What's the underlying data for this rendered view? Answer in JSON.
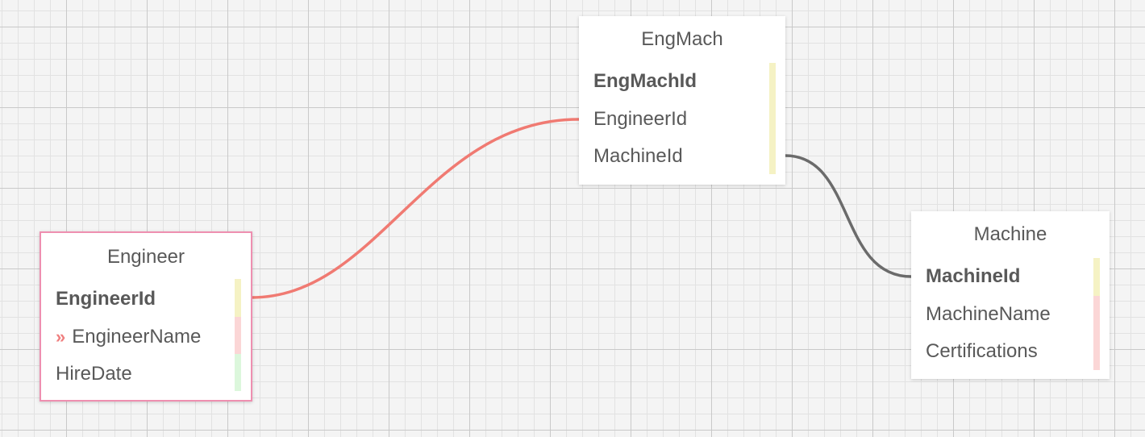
{
  "colors": {
    "marker_pk": "#f5f2c4",
    "marker_fk": "#fbd6d6",
    "marker_attr": "#dcf7dc",
    "link_selected": "#f07a72",
    "link_default": "#6b6b6b",
    "selected_border": "#ee8fb0"
  },
  "tables": {
    "engineer": {
      "title": "Engineer",
      "fields": [
        {
          "name": "EngineerId",
          "key": "pk"
        },
        {
          "name": "EngineerName",
          "key": "attr",
          "icon": "double-chevron-right-icon"
        },
        {
          "name": "HireDate",
          "key": "attr"
        }
      ]
    },
    "engmach": {
      "title": "EngMach",
      "fields": [
        {
          "name": "EngMachId",
          "key": "pk"
        },
        {
          "name": "EngineerId",
          "key": "fk"
        },
        {
          "name": "MachineId",
          "key": "fk"
        }
      ]
    },
    "machine": {
      "title": "Machine",
      "fields": [
        {
          "name": "MachineId",
          "key": "pk"
        },
        {
          "name": "MachineName",
          "key": "attr"
        },
        {
          "name": "Certifications",
          "key": "attr"
        }
      ]
    }
  },
  "links": [
    {
      "from": "Engineer.EngineerId",
      "to": "EngMach.EngineerId",
      "state": "selected"
    },
    {
      "from": "EngMach.MachineId",
      "to": "Machine.MachineId",
      "state": "default"
    }
  ]
}
